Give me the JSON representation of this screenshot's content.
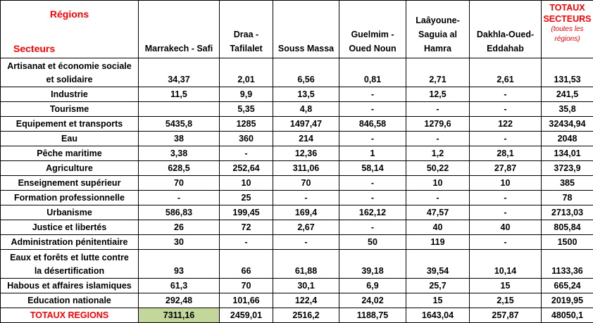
{
  "header": {
    "regions_label": "Régions",
    "secteurs_label": "Secteurs",
    "columns": [
      "Marrakech - Safi",
      "Draa - Tafilalet",
      "Souss Massa",
      "Guelmim - Oued Noun",
      "Laâyoune-Saguia al Hamra",
      "Dakhla-Oued-Eddahab"
    ],
    "columns_lines": [
      [
        "Marrakech - Safi"
      ],
      [
        "Draa -",
        "Tafilalet"
      ],
      [
        "Souss Massa"
      ],
      [
        "Guelmim -",
        "Oued Noun"
      ],
      [
        "Laâyoune-",
        "Saguia al",
        "Hamra"
      ],
      [
        "Dakhla-Oued-",
        "Eddahab"
      ]
    ],
    "totals_title_lines": [
      "TOTAUX",
      "SECTEURS"
    ],
    "totals_subtitle_lines": [
      "(toutes les",
      "régions)"
    ]
  },
  "rows": [
    {
      "sector": "Artisanat et économie sociale et solidaire",
      "sector_lines": [
        "Artisanat et économie sociale",
        "et solidaire"
      ],
      "values": [
        "34,37",
        "2,01",
        "6,56",
        "0,81",
        "2,71",
        "2,61"
      ],
      "total": "131,53"
    },
    {
      "sector": "Industrie",
      "values": [
        "11,5",
        "9,9",
        "13,5",
        "-",
        "12,5",
        "-"
      ],
      "total": "241,5"
    },
    {
      "sector": "Tourisme",
      "values": [
        "",
        "5,35",
        "4,8",
        "-",
        "-",
        "-"
      ],
      "total": "35,8"
    },
    {
      "sector": "Equipement et transports",
      "values": [
        "5435,8",
        "1285",
        "1497,47",
        "846,58",
        "1279,6",
        "122"
      ],
      "total": "32434,94"
    },
    {
      "sector": "Eau",
      "values": [
        "38",
        "360",
        "214",
        "-",
        "-",
        "-"
      ],
      "total": "2048"
    },
    {
      "sector": "Pêche maritime",
      "values": [
        "3,38",
        "-",
        "12,36",
        "1",
        "1,2",
        "28,1"
      ],
      "total": "134,01"
    },
    {
      "sector": "Agriculture",
      "values": [
        "628,5",
        "252,64",
        "311,06",
        "58,14",
        "50,22",
        "27,87"
      ],
      "total": "3723,9"
    },
    {
      "sector": "Enseignement supérieur",
      "values": [
        "70",
        "10",
        "70",
        "-",
        "10",
        "10"
      ],
      "total": "385"
    },
    {
      "sector": "Formation professionnelle",
      "values": [
        "-",
        "25",
        "-",
        "-",
        "-",
        "-"
      ],
      "total": "78"
    },
    {
      "sector": "Urbanisme",
      "values": [
        "586,83",
        "199,45",
        "169,4",
        "162,12",
        "47,57",
        "-"
      ],
      "total": "2713,03"
    },
    {
      "sector": "Justice et libertés",
      "values": [
        "26",
        "72",
        "2,67",
        "-",
        "40",
        "40"
      ],
      "total": "805,84"
    },
    {
      "sector": "Administration pénitentiaire",
      "values": [
        "30",
        "-",
        "-",
        "50",
        "119",
        "-"
      ],
      "total": "1500"
    },
    {
      "sector": "Eaux et forêts et lutte contre la désertification",
      "sector_lines": [
        "Eaux et forêts et lutte contre",
        "la désertification"
      ],
      "values": [
        "93",
        "66",
        "61,88",
        "39,18",
        "39,54",
        "10,14"
      ],
      "total": "1133,36"
    },
    {
      "sector": "Habous et affaires islamiques",
      "values": [
        "61,3",
        "70",
        "30,1",
        "6,9",
        "25,7",
        "15"
      ],
      "total": "665,24"
    },
    {
      "sector": "Education nationale",
      "values": [
        "292,48",
        "101,66",
        "122,4",
        "24,02",
        "15",
        "2,15"
      ],
      "total": "2019,95"
    }
  ],
  "totals_row": {
    "label": "TOTAUX REGIONS",
    "values": [
      "7311,16",
      "2459,01",
      "2516,2",
      "1188,75",
      "1643,04",
      "257,87"
    ],
    "total": "48050,1"
  },
  "colors": {
    "accent_red": "#ff0000",
    "highlight_green": "#c4d79b"
  }
}
